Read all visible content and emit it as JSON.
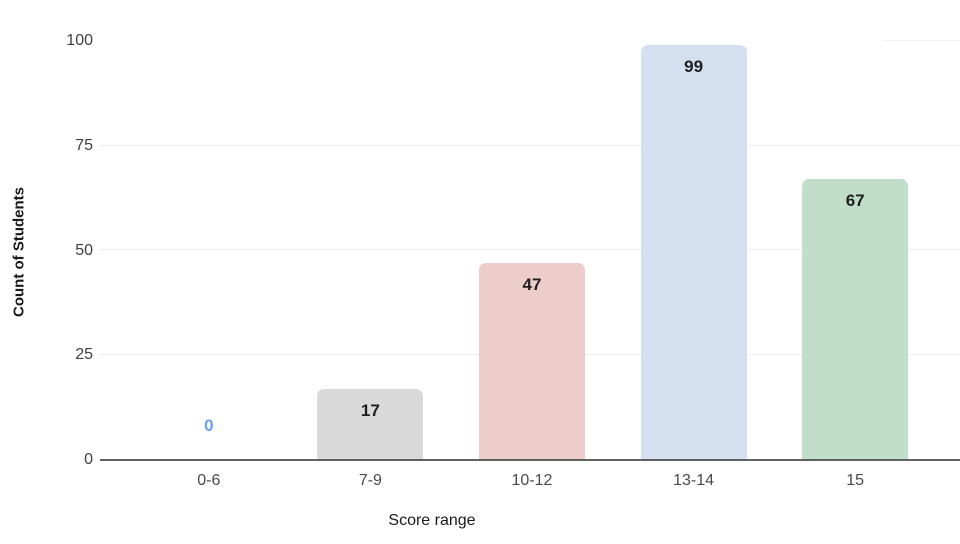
{
  "chart_data": {
    "type": "bar",
    "title": "",
    "categories": [
      "0-6",
      "7-9",
      "10-12",
      "13-14",
      "15"
    ],
    "values": [
      0,
      17,
      47,
      99,
      67
    ],
    "series": [
      {
        "name": "Count of Students",
        "values": [
          0,
          17,
          47,
          99,
          67
        ]
      }
    ],
    "bar_colors": [
      "none",
      "#d9d9d9",
      "#edcdc9",
      "#d4e0ef",
      "#c1decb"
    ],
    "value_labels": [
      "0",
      "17",
      "47",
      "99",
      "67"
    ],
    "value_label_colors": [
      "#6d9eeb",
      "#1f1f1f",
      "#1f1f1f",
      "#1f1f1f",
      "#1f1f1f"
    ],
    "xlabel": "Score range",
    "ylabel": "Count of Students",
    "yticks": [
      0,
      25,
      50,
      75,
      100
    ],
    "ytick_labels": [
      "0",
      "25",
      "50",
      "75",
      "100"
    ],
    "ylim": [
      0,
      100
    ],
    "grid": "horizontal",
    "legend": "none"
  },
  "colors": {
    "background": "#ffffff",
    "gridline": "#ededed",
    "gridline_partial": "#f2f2f2",
    "axis_line": "#616161",
    "y_tick_label": "#404040",
    "category_label": "#4a4a4a",
    "value_label": "#1f1f1f",
    "zero_value_label": "#6d9eeb"
  }
}
